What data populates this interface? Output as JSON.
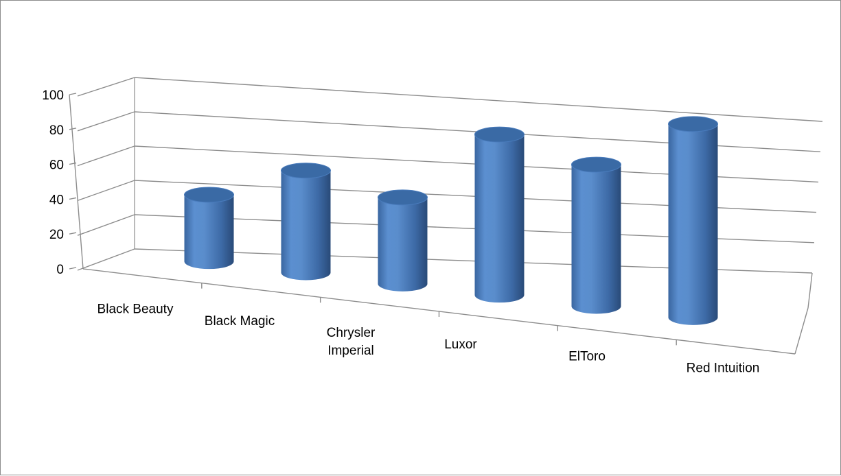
{
  "chart_data": {
    "type": "bar",
    "style": "3d-cylinder",
    "categories": [
      "Black Beauty",
      "Black Magic",
      "Chrysler Imperial",
      "Luxor",
      "ElToro",
      "Red Intuition"
    ],
    "values": [
      60,
      80,
      60,
      100,
      80,
      100
    ],
    "ylim": [
      0,
      100
    ],
    "yticks": [
      "0",
      "20",
      "40",
      "60",
      "80",
      "100"
    ],
    "grid": true,
    "legend": "none",
    "colors": {
      "bar": "#4f81bd",
      "bar_top": "#3a6aa5",
      "bar_dark": "#2b4d7e",
      "grid": "#8c8c8c"
    }
  }
}
